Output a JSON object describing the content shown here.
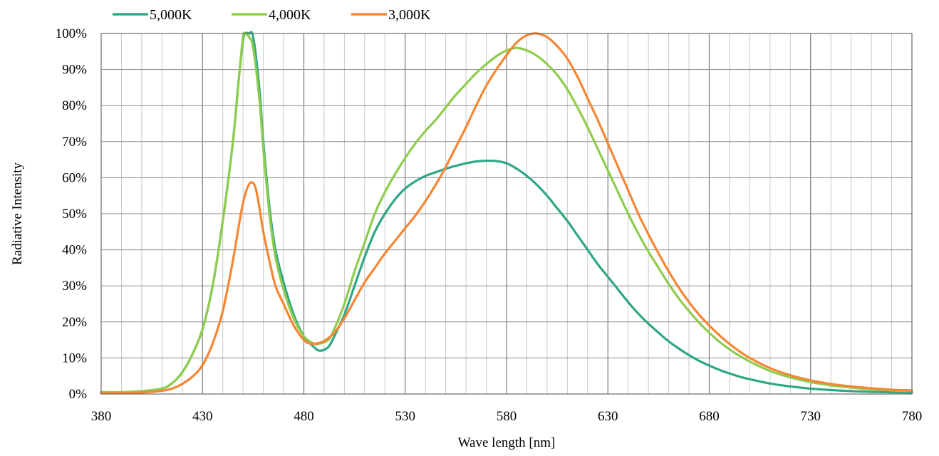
{
  "chart_data": {
    "type": "line",
    "xlabel": "Wave length [nm]",
    "ylabel": "Radiative Intensity",
    "xlim": [
      380,
      780
    ],
    "ylim": [
      0,
      100
    ],
    "x_ticks": [
      380,
      430,
      480,
      530,
      580,
      630,
      680,
      730,
      780
    ],
    "x_tick_labels": [
      "380",
      "430",
      "480",
      "530",
      "580",
      "630",
      "680",
      "730",
      "780"
    ],
    "y_ticks": [
      0,
      10,
      20,
      30,
      40,
      50,
      60,
      70,
      80,
      90,
      100
    ],
    "y_tick_labels": [
      "0%",
      "10%",
      "20%",
      "30%",
      "40%",
      "50%",
      "60%",
      "70%",
      "80%",
      "90%",
      "100%"
    ],
    "x_minor_step": 10,
    "grid": true,
    "legend_position": "top-left",
    "series": [
      {
        "name": "5,000K",
        "color": "#2ea787",
        "points": [
          [
            380,
            0.5
          ],
          [
            390,
            0.5
          ],
          [
            400,
            0.8
          ],
          [
            410,
            1.5
          ],
          [
            415,
            3
          ],
          [
            420,
            6
          ],
          [
            425,
            11
          ],
          [
            430,
            18
          ],
          [
            435,
            30
          ],
          [
            440,
            48
          ],
          [
            445,
            70
          ],
          [
            448,
            88
          ],
          [
            450,
            98
          ],
          [
            451,
            100
          ],
          [
            453,
            100
          ],
          [
            455,
            99
          ],
          [
            458,
            85
          ],
          [
            460,
            70
          ],
          [
            463,
            52
          ],
          [
            466,
            40
          ],
          [
            470,
            31
          ],
          [
            475,
            22
          ],
          [
            480,
            16
          ],
          [
            485,
            13
          ],
          [
            488,
            12
          ],
          [
            492,
            13
          ],
          [
            495,
            16
          ],
          [
            500,
            22
          ],
          [
            505,
            30
          ],
          [
            510,
            38
          ],
          [
            515,
            45
          ],
          [
            520,
            50
          ],
          [
            525,
            54
          ],
          [
            530,
            57
          ],
          [
            535,
            59
          ],
          [
            540,
            60.5
          ],
          [
            545,
            61.5
          ],
          [
            550,
            62.5
          ],
          [
            555,
            63.3
          ],
          [
            560,
            64
          ],
          [
            565,
            64.5
          ],
          [
            570,
            64.7
          ],
          [
            575,
            64.6
          ],
          [
            580,
            64
          ],
          [
            585,
            62.5
          ],
          [
            590,
            60.5
          ],
          [
            595,
            58
          ],
          [
            600,
            55
          ],
          [
            605,
            51.5
          ],
          [
            610,
            48
          ],
          [
            615,
            44
          ],
          [
            620,
            40
          ],
          [
            625,
            36
          ],
          [
            630,
            32.5
          ],
          [
            635,
            29
          ],
          [
            640,
            25.5
          ],
          [
            645,
            22.3
          ],
          [
            650,
            19.5
          ],
          [
            655,
            17
          ],
          [
            660,
            14.6
          ],
          [
            665,
            12.6
          ],
          [
            670,
            10.8
          ],
          [
            675,
            9.2
          ],
          [
            680,
            7.9
          ],
          [
            685,
            6.7
          ],
          [
            690,
            5.7
          ],
          [
            695,
            4.8
          ],
          [
            700,
            4.1
          ],
          [
            710,
            2.9
          ],
          [
            720,
            2.1
          ],
          [
            730,
            1.5
          ],
          [
            740,
            1.1
          ],
          [
            750,
            0.8
          ],
          [
            760,
            0.6
          ],
          [
            770,
            0.5
          ],
          [
            780,
            0.4
          ]
        ]
      },
      {
        "name": "4,000K",
        "color": "#8fcc4e",
        "points": [
          [
            380,
            0.5
          ],
          [
            390,
            0.5
          ],
          [
            400,
            0.8
          ],
          [
            410,
            1.5
          ],
          [
            415,
            3
          ],
          [
            420,
            6
          ],
          [
            425,
            11
          ],
          [
            430,
            18
          ],
          [
            435,
            30
          ],
          [
            440,
            48
          ],
          [
            445,
            70
          ],
          [
            448,
            88
          ],
          [
            450,
            99
          ],
          [
            451,
            100
          ],
          [
            453,
            99
          ],
          [
            455,
            96
          ],
          [
            458,
            82
          ],
          [
            460,
            68
          ],
          [
            463,
            50
          ],
          [
            466,
            38
          ],
          [
            470,
            29
          ],
          [
            475,
            21
          ],
          [
            480,
            16
          ],
          [
            485,
            14
          ],
          [
            488,
            14
          ],
          [
            492,
            15
          ],
          [
            495,
            18
          ],
          [
            500,
            25
          ],
          [
            505,
            34
          ],
          [
            510,
            42
          ],
          [
            515,
            50
          ],
          [
            520,
            56
          ],
          [
            525,
            61
          ],
          [
            530,
            65.5
          ],
          [
            535,
            69.5
          ],
          [
            540,
            73
          ],
          [
            545,
            76
          ],
          [
            550,
            79.5
          ],
          [
            555,
            83
          ],
          [
            560,
            86
          ],
          [
            565,
            89
          ],
          [
            570,
            91.5
          ],
          [
            575,
            93.7
          ],
          [
            580,
            95.3
          ],
          [
            585,
            96
          ],
          [
            590,
            95.3
          ],
          [
            595,
            93.8
          ],
          [
            600,
            91.5
          ],
          [
            605,
            88.5
          ],
          [
            610,
            84.5
          ],
          [
            615,
            79.5
          ],
          [
            620,
            74
          ],
          [
            625,
            68
          ],
          [
            630,
            62
          ],
          [
            635,
            56
          ],
          [
            640,
            50
          ],
          [
            645,
            44.5
          ],
          [
            650,
            39.5
          ],
          [
            655,
            35
          ],
          [
            660,
            30.5
          ],
          [
            665,
            26.5
          ],
          [
            670,
            23
          ],
          [
            675,
            19.8
          ],
          [
            680,
            17
          ],
          [
            685,
            14.5
          ],
          [
            690,
            12.4
          ],
          [
            695,
            10.6
          ],
          [
            700,
            9
          ],
          [
            710,
            6.4
          ],
          [
            720,
            4.6
          ],
          [
            730,
            3.3
          ],
          [
            740,
            2.4
          ],
          [
            750,
            1.8
          ],
          [
            760,
            1.3
          ],
          [
            770,
            1
          ],
          [
            780,
            0.8
          ]
        ]
      },
      {
        "name": "3,000K",
        "color": "#f58634",
        "points": [
          [
            380,
            0.2
          ],
          [
            400,
            0.4
          ],
          [
            410,
            0.9
          ],
          [
            415,
            1.5
          ],
          [
            420,
            2.8
          ],
          [
            425,
            4.8
          ],
          [
            430,
            8
          ],
          [
            435,
            14
          ],
          [
            440,
            23
          ],
          [
            445,
            37
          ],
          [
            448,
            47
          ],
          [
            450,
            53
          ],
          [
            452,
            57
          ],
          [
            454,
            58.7
          ],
          [
            456,
            57.5
          ],
          [
            458,
            52
          ],
          [
            460,
            45
          ],
          [
            463,
            37
          ],
          [
            466,
            30
          ],
          [
            470,
            25
          ],
          [
            475,
            19
          ],
          [
            480,
            15
          ],
          [
            483,
            14
          ],
          [
            486,
            14
          ],
          [
            490,
            14.7
          ],
          [
            495,
            17
          ],
          [
            500,
            21
          ],
          [
            505,
            26
          ],
          [
            510,
            31
          ],
          [
            515,
            35
          ],
          [
            520,
            39
          ],
          [
            525,
            42.5
          ],
          [
            530,
            46
          ],
          [
            535,
            49.5
          ],
          [
            540,
            53.5
          ],
          [
            545,
            58
          ],
          [
            550,
            63
          ],
          [
            555,
            68.5
          ],
          [
            560,
            74
          ],
          [
            565,
            80
          ],
          [
            570,
            85.5
          ],
          [
            575,
            90
          ],
          [
            580,
            94
          ],
          [
            585,
            97.5
          ],
          [
            590,
            99.5
          ],
          [
            595,
            100
          ],
          [
            600,
            99
          ],
          [
            605,
            96.5
          ],
          [
            610,
            93
          ],
          [
            615,
            88
          ],
          [
            620,
            82
          ],
          [
            625,
            76
          ],
          [
            630,
            69.5
          ],
          [
            635,
            63
          ],
          [
            640,
            56.5
          ],
          [
            645,
            50
          ],
          [
            650,
            44.3
          ],
          [
            655,
            39
          ],
          [
            660,
            34
          ],
          [
            665,
            29.5
          ],
          [
            670,
            25.5
          ],
          [
            675,
            22
          ],
          [
            680,
            19
          ],
          [
            685,
            16.3
          ],
          [
            690,
            13.9
          ],
          [
            695,
            11.8
          ],
          [
            700,
            10
          ],
          [
            710,
            7.2
          ],
          [
            720,
            5.2
          ],
          [
            730,
            3.8
          ],
          [
            740,
            2.8
          ],
          [
            750,
            2.1
          ],
          [
            760,
            1.6
          ],
          [
            770,
            1.2
          ],
          [
            780,
            1
          ]
        ]
      }
    ]
  }
}
